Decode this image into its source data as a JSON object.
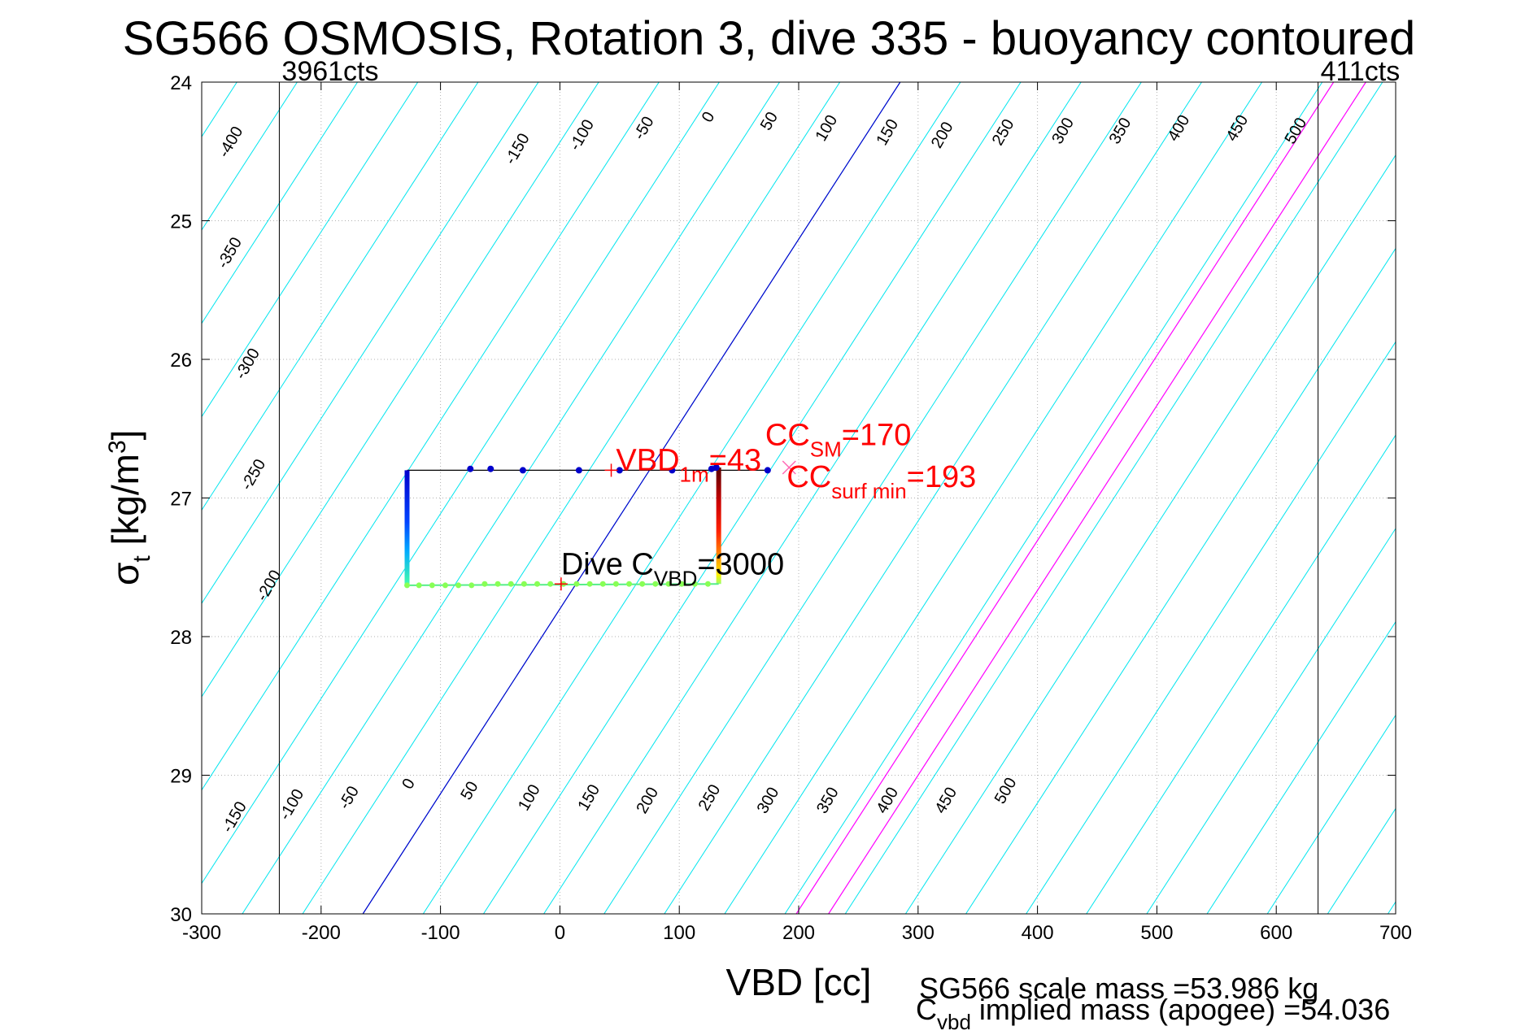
{
  "title": "SG566 OSMOSIS, Rotation 3, dive 335 - buoyancy contoured",
  "footer": {
    "scale_mass": "SG566 scale mass =53.986 kg",
    "implied_mass_prefix": "C",
    "implied_mass_sub": "vbd",
    "implied_mass_rest": " implied mass (apogee) =54.036"
  },
  "chart_data": {
    "type": "line",
    "title": "SG566 OSMOSIS, Rotation 3, dive 335 - buoyancy contoured",
    "xlabel": "VBD [cc]",
    "ylabel": {
      "sym": "σ",
      "sub": "t",
      "rest": " [kg/m",
      "sup": "3",
      "close": "]"
    },
    "xlim": [
      -300,
      700
    ],
    "ylim": [
      24,
      30
    ],
    "y_reversed": true,
    "grid": true,
    "xticks": [
      -300,
      -200,
      -100,
      0,
      100,
      200,
      300,
      400,
      500,
      600,
      700
    ],
    "yticks": [
      24,
      25,
      26,
      27,
      28,
      29,
      30
    ],
    "vbd_limits": [
      {
        "x": -235,
        "label": "3961cts"
      },
      {
        "x": 635,
        "label": "411cts"
      }
    ],
    "buoyancy_contours": {
      "levels": [
        -400,
        -350,
        -300,
        -250,
        -200,
        -150,
        -100,
        -50,
        0,
        50,
        100,
        150,
        200,
        250,
        300,
        350,
        400,
        450,
        500
      ],
      "upper_set": {
        "x_at_sigma24": {
          "-400": -300,
          "-350": -300,
          "-300": -300,
          "-250": -300,
          "-200": -300,
          "-150": -300,
          "-100": -300,
          "-50": -300,
          "0": 140,
          "50": 190,
          "100": 240,
          "150": 290,
          "200": 340,
          "250": 390,
          "300": 440,
          "350": 490,
          "400": 540,
          "450": 590,
          "500": 640
        },
        "labels": [
          {
            "level": "-400",
            "x": -272,
            "y": 24.45
          },
          {
            "level": "-350",
            "x": -273,
            "y": 25.25
          },
          {
            "level": "-300",
            "x": -258,
            "y": 26.05
          },
          {
            "level": "-250",
            "x": -253,
            "y": 26.85
          },
          {
            "level": "-200",
            "x": -240,
            "y": 27.65
          },
          {
            "level": "-150",
            "x": -32,
            "y": 24.5
          },
          {
            "level": "-100",
            "x": 22,
            "y": 24.4
          },
          {
            "level": "-50",
            "x": 74,
            "y": 24.35
          },
          {
            "level": "0",
            "x": 128,
            "y": 24.27
          },
          {
            "level": "50",
            "x": 179,
            "y": 24.3
          },
          {
            "level": "100",
            "x": 227,
            "y": 24.35
          },
          {
            "level": "150",
            "x": 278,
            "y": 24.38
          },
          {
            "level": "200",
            "x": 324,
            "y": 24.4
          },
          {
            "level": "250",
            "x": 375,
            "y": 24.38
          },
          {
            "level": "300",
            "x": 425,
            "y": 24.37
          },
          {
            "level": "350",
            "x": 473,
            "y": 24.37
          },
          {
            "level": "400",
            "x": 522,
            "y": 24.35
          },
          {
            "level": "450",
            "x": 571,
            "y": 24.35
          },
          {
            "level": "500",
            "x": 620,
            "y": 24.37
          }
        ]
      },
      "lower_set": {
        "labels": [
          {
            "level": "-150",
            "x": -269,
            "y": 29.32
          },
          {
            "level": "-100",
            "x": -221,
            "y": 29.23
          },
          {
            "level": "-50",
            "x": -173,
            "y": 29.18
          },
          {
            "level": "0",
            "x": -123,
            "y": 29.08
          },
          {
            "level": "50",
            "x": -72,
            "y": 29.13
          },
          {
            "level": "100",
            "x": -22,
            "y": 29.18
          },
          {
            "level": "150",
            "x": 28,
            "y": 29.18
          },
          {
            "level": "200",
            "x": 77,
            "y": 29.2
          },
          {
            "level": "250",
            "x": 129,
            "y": 29.18
          },
          {
            "level": "300",
            "x": 178,
            "y": 29.2
          },
          {
            "level": "350",
            "x": 228,
            "y": 29.2
          },
          {
            "level": "400",
            "x": 278,
            "y": 29.2
          },
          {
            "level": "450",
            "x": 327,
            "y": 29.2
          },
          {
            "level": "500",
            "x": 377,
            "y": 29.13
          }
        ]
      },
      "slope_cc_per_sigma": -75
    },
    "series": [
      {
        "x": [
          -128,
          -75,
          -58,
          -31,
          16,
          50,
          94,
          127,
          131,
          133,
          133,
          133,
          133,
          133,
          130,
          -128,
          -128,
          -128,
          -128
        ],
        "y": [
          26.8,
          26.79,
          26.79,
          26.8,
          26.8,
          26.8,
          26.8,
          26.79,
          26.78,
          26.8,
          27.0,
          27.2,
          27.4,
          27.55,
          27.62,
          27.63,
          27.4,
          27.1,
          26.85
        ]
      }
    ],
    "surface_points": {
      "x": [
        -75,
        -58,
        -31,
        16,
        50,
        94,
        127,
        131,
        174
      ],
      "y": [
        26.79,
        26.79,
        26.8,
        26.8,
        26.8,
        26.8,
        26.79,
        26.78,
        26.8
      ]
    },
    "deep_points": {
      "x": [
        -128,
        -118,
        -107,
        -96,
        -85,
        -74,
        -63,
        -52,
        -41,
        -30,
        -19,
        -8,
        3,
        14,
        25,
        36,
        47,
        58,
        69,
        80,
        91,
        102,
        113,
        124
      ],
      "y": [
        27.63,
        27.63,
        27.63,
        27.63,
        27.63,
        27.63,
        27.62,
        27.62,
        27.62,
        27.62,
        27.62,
        27.62,
        27.62,
        27.62,
        27.62,
        27.62,
        27.62,
        27.62,
        27.62,
        27.62,
        27.62,
        27.62,
        27.62,
        27.62
      ]
    },
    "magenta_lines": [
      {
        "name": "CC_SM",
        "x_at_sigma30": 198,
        "annot": {
          "main": "CC",
          "sub": "SM",
          "rest": "=170",
          "color": "#ff0000",
          "x": 172,
          "y": 26.62
        }
      },
      {
        "name": "CC_surf_min",
        "x_at_sigma30": 225,
        "annot": {
          "main": "CC",
          "sub": "surf min",
          "rest": "=193",
          "color": "#ff0000",
          "x": 190,
          "y": 26.92
        }
      }
    ],
    "blue_zero_line": {
      "x_at_sigma30": -165
    },
    "annotations": [
      {
        "main": "VBD",
        "sub": "1m",
        "rest": "=43",
        "color": "#ff0000",
        "x": 47,
        "y": 26.8
      },
      {
        "main": "Dive C",
        "sub": "VBD",
        "rest": "=3000",
        "color": "#000000",
        "x": 1,
        "y": 27.55
      }
    ],
    "markers": [
      {
        "shape": "plus",
        "x": 43,
        "y": 26.8,
        "color": "#ff0000"
      },
      {
        "shape": "cross",
        "x": 192,
        "y": 26.78,
        "color": "#ff69b4"
      },
      {
        "shape": "plus",
        "x": 1,
        "y": 27.62,
        "color": "#ff0000"
      }
    ]
  }
}
